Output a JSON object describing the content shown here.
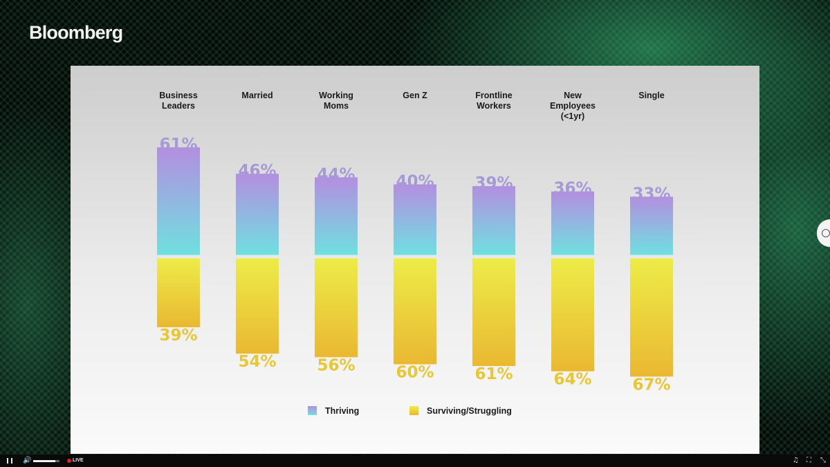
{
  "logo": "Bloomberg",
  "player": {
    "live_label": "LIVE",
    "icons": [
      "pause-icon",
      "volume-icon",
      "music-note-icon",
      "fullscreen-icon",
      "exit-fullscreen-icon",
      "chat-icon"
    ]
  },
  "chart_data": {
    "type": "bar",
    "title": "",
    "categories": [
      [
        "Business",
        "Leaders"
      ],
      [
        "Married"
      ],
      [
        "Working",
        "Moms"
      ],
      [
        "Gen Z"
      ],
      [
        "Frontline",
        "Workers"
      ],
      [
        "New",
        "Employees",
        "(<1yr)"
      ],
      [
        "Single"
      ]
    ],
    "series": [
      {
        "name": "Thriving",
        "values": [
          61,
          46,
          44,
          40,
          39,
          36,
          33
        ],
        "labels": [
          "61%",
          "46%",
          "44%",
          "40%",
          "39%",
          "36%",
          "33%"
        ]
      },
      {
        "name": "Surviving/Struggling",
        "values": [
          39,
          54,
          56,
          60,
          61,
          64,
          67
        ],
        "labels": [
          "39%",
          "54%",
          "56%",
          "60%",
          "61%",
          "64%",
          "67%"
        ]
      }
    ],
    "legend": [
      "Thriving",
      "Surviving/Struggling"
    ],
    "legend_position": "bottom",
    "colors": {
      "thriving_top": "#b48ee0",
      "thriving_bottom": "#6fe0e0",
      "struggling_top": "#ecec48",
      "struggling_bottom": "#eab832",
      "thriving_label": "#a59ad6",
      "struggling_label": "#e8c634"
    },
    "xlabel": "",
    "ylabel": "",
    "ylim": [
      0,
      100
    ]
  }
}
